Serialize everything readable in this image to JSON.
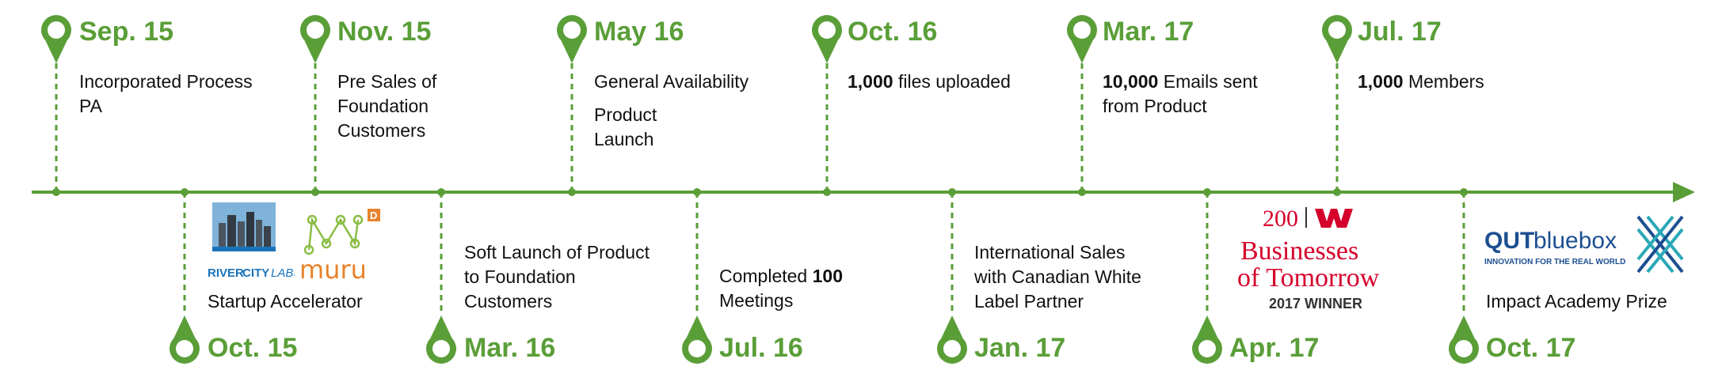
{
  "colors": {
    "accent": "#5a9e38",
    "text": "#111111",
    "westpac_red": "#d5002b",
    "qut_blue": "#1d4f91",
    "qut_teal": "#2aa8b8",
    "rcl_blue": "#1a73ba",
    "muru_orange": "#e8832c",
    "muru_green": "#8bbd45"
  },
  "milestones_top": [
    {
      "date": "Sep. 15",
      "lines": [
        "Incorporated Process",
        "PA"
      ]
    },
    {
      "date": "Nov. 15",
      "lines": [
        "Pre Sales of",
        "Foundation",
        "Customers"
      ]
    },
    {
      "date": "May 16",
      "lines": [
        "General Availability"
      ],
      "extra_lines": [
        "Product",
        "Launch"
      ]
    },
    {
      "date": "Oct. 16",
      "bold": "1,000",
      "rest": " files uploaded"
    },
    {
      "date": "Mar. 17",
      "bold": "10,000",
      "rest": " Emails sent",
      "line2": "from Product"
    },
    {
      "date": "Jul. 17",
      "bold": "1,000",
      "rest": " Members"
    }
  ],
  "milestones_bottom": [
    {
      "date": "Oct. 15",
      "lines": [
        "Startup Accelerator"
      ]
    },
    {
      "date": "Mar. 16",
      "lines": [
        "Soft Launch of Product",
        "to Foundation",
        "Customers"
      ]
    },
    {
      "date": "Jul. 16",
      "pre": "Completed ",
      "bold": "100",
      "line2": "Meetings"
    },
    {
      "date": "Jan. 17",
      "lines": [
        "International Sales",
        "with Canadian White",
        "Label Partner"
      ]
    },
    {
      "date": "Apr. 17",
      "lines": []
    },
    {
      "date": "Oct. 17",
      "lines": [
        "Impact Academy Prize"
      ]
    }
  ],
  "logos": {
    "rivercity": {
      "word1": "RIVER",
      "word2": "CITY",
      "word3": "LABS"
    },
    "muru": {
      "text": "muru",
      "badge": "D"
    },
    "westpac": {
      "num": "200",
      "line1": "Businesses",
      "line2": "of Tomorrow",
      "line3": "2017 WINNER"
    },
    "qut": {
      "word1": "QUT",
      "word2": "bluebox",
      "tagline": "INNOVATION FOR THE REAL WORLD"
    }
  }
}
